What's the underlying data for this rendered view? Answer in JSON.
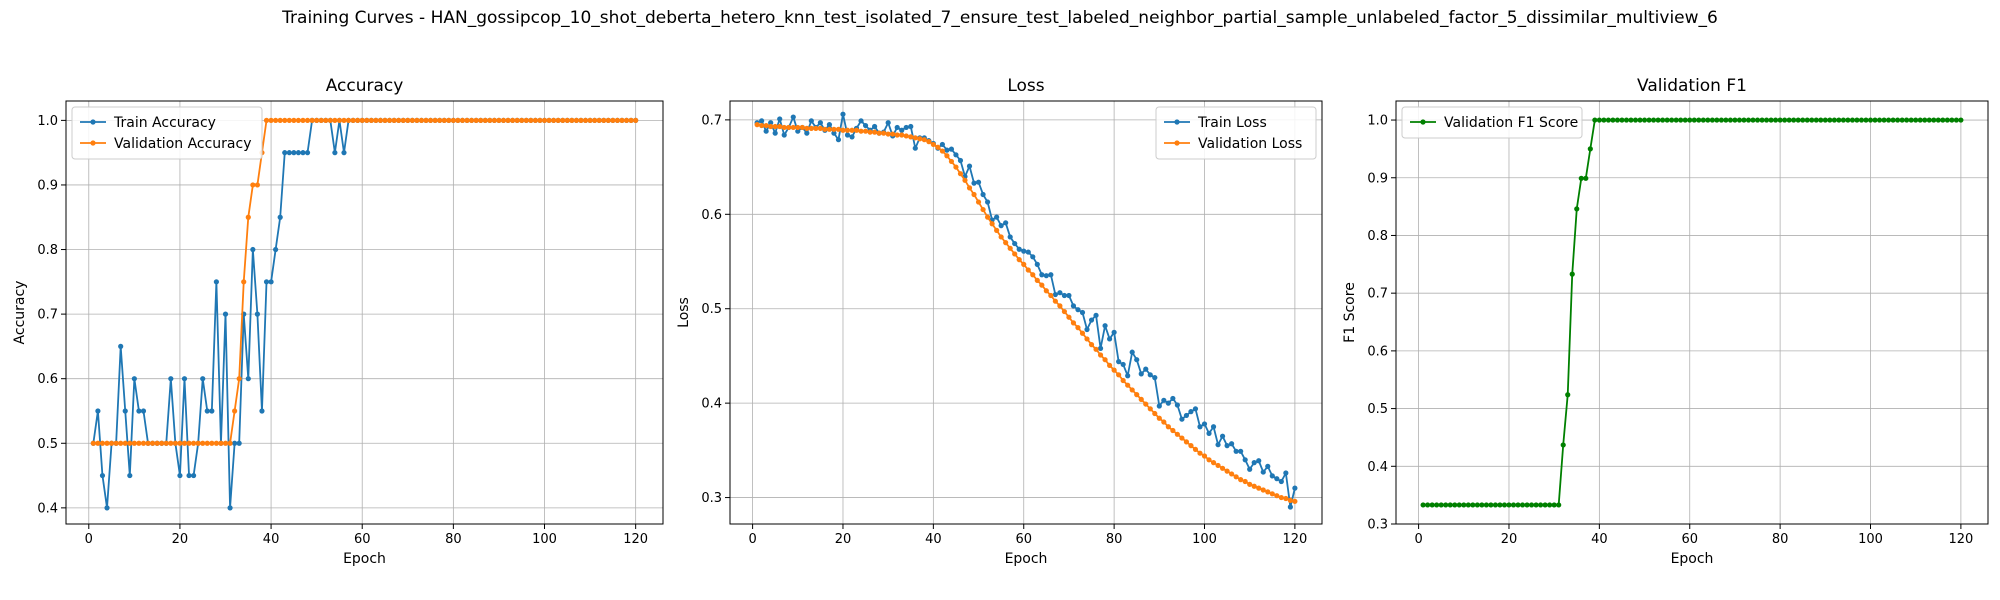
{
  "figure": {
    "suptitle": "Training Curves - HAN_gossipcop_10_shot_deberta_hetero_knn_test_isolated_7_ensure_test_labeled_neighbor_partial_sample_unlabeled_factor_5_dissimilar_multiview_6"
  },
  "chart_data": [
    {
      "type": "line",
      "title": "Accuracy",
      "xlabel": "Epoch",
      "ylabel": "Accuracy",
      "xlim": [
        -5,
        126
      ],
      "ylim": [
        0.375,
        1.03
      ],
      "xticks": [
        0,
        20,
        40,
        60,
        80,
        100,
        120
      ],
      "yticks": [
        0.4,
        0.5,
        0.6,
        0.7,
        0.8,
        0.9,
        1.0
      ],
      "ytick_labels": [
        "0.4",
        "0.5",
        "0.6",
        "0.7",
        "0.8",
        "0.9",
        "1.0"
      ],
      "grid": true,
      "legend_position": "upper-left",
      "x": [
        1,
        2,
        3,
        4,
        5,
        6,
        7,
        8,
        9,
        10,
        11,
        12,
        13,
        14,
        15,
        16,
        17,
        18,
        19,
        20,
        21,
        22,
        23,
        24,
        25,
        26,
        27,
        28,
        29,
        30,
        31,
        32,
        33,
        34,
        35,
        36,
        37,
        38,
        39,
        40,
        41,
        42,
        43,
        44,
        45,
        46,
        47,
        48,
        49,
        50,
        51,
        52,
        53,
        54,
        55,
        56,
        57,
        58,
        59,
        60,
        61,
        62,
        63,
        64,
        65,
        66,
        67,
        68,
        69,
        70,
        71,
        72,
        73,
        74,
        75,
        76,
        77,
        78,
        79,
        80,
        81,
        82,
        83,
        84,
        85,
        86,
        87,
        88,
        89,
        90,
        91,
        92,
        93,
        94,
        95,
        96,
        97,
        98,
        99,
        100,
        101,
        102,
        103,
        104,
        105,
        106,
        107,
        108,
        109,
        110,
        111,
        112,
        113,
        114,
        115,
        116,
        117,
        118,
        119,
        120
      ],
      "series": [
        {
          "name": "Train Accuracy",
          "color": "#1f77b4",
          "values": [
            0.5,
            0.55,
            0.45,
            0.4,
            0.5,
            0.5,
            0.65,
            0.55,
            0.45,
            0.6,
            0.55,
            0.55,
            0.5,
            0.5,
            0.5,
            0.5,
            0.5,
            0.6,
            0.5,
            0.45,
            0.6,
            0.45,
            0.45,
            0.5,
            0.6,
            0.55,
            0.55,
            0.75,
            0.5,
            0.7,
            0.4,
            0.5,
            0.5,
            0.7,
            0.6,
            0.8,
            0.7,
            0.55,
            0.75,
            0.75,
            0.8,
            0.85,
            0.95,
            0.95,
            0.95,
            0.95,
            0.95,
            0.95,
            1.0,
            1.0,
            1.0,
            1.0,
            1.0,
            0.95,
            1.0,
            0.95,
            1.0,
            1.0,
            1.0,
            1.0,
            1.0,
            1.0,
            1.0,
            1.0,
            1.0,
            1.0,
            1.0,
            1.0,
            1.0,
            1.0,
            1.0,
            1.0,
            1.0,
            1.0,
            1.0,
            1.0,
            1.0,
            1.0,
            1.0,
            1.0,
            1.0,
            1.0,
            1.0,
            1.0,
            1.0,
            1.0,
            1.0,
            1.0,
            1.0,
            1.0,
            1.0,
            1.0,
            1.0,
            1.0,
            1.0,
            1.0,
            1.0,
            1.0,
            1.0,
            1.0,
            1.0,
            1.0,
            1.0,
            1.0,
            1.0,
            1.0,
            1.0,
            1.0,
            1.0,
            1.0,
            1.0,
            1.0,
            1.0,
            1.0,
            1.0,
            1.0,
            1.0,
            1.0,
            1.0,
            1.0
          ]
        },
        {
          "name": "Validation Accuracy",
          "color": "#ff7f0e",
          "values": [
            0.5,
            0.5,
            0.5,
            0.5,
            0.5,
            0.5,
            0.5,
            0.5,
            0.5,
            0.5,
            0.5,
            0.5,
            0.5,
            0.5,
            0.5,
            0.5,
            0.5,
            0.5,
            0.5,
            0.5,
            0.5,
            0.5,
            0.5,
            0.5,
            0.5,
            0.5,
            0.5,
            0.5,
            0.5,
            0.5,
            0.5,
            0.55,
            0.6,
            0.75,
            0.85,
            0.9,
            0.9,
            0.95,
            1.0,
            1.0,
            1.0,
            1.0,
            1.0,
            1.0,
            1.0,
            1.0,
            1.0,
            1.0,
            1.0,
            1.0,
            1.0,
            1.0,
            1.0,
            1.0,
            1.0,
            1.0,
            1.0,
            1.0,
            1.0,
            1.0,
            1.0,
            1.0,
            1.0,
            1.0,
            1.0,
            1.0,
            1.0,
            1.0,
            1.0,
            1.0,
            1.0,
            1.0,
            1.0,
            1.0,
            1.0,
            1.0,
            1.0,
            1.0,
            1.0,
            1.0,
            1.0,
            1.0,
            1.0,
            1.0,
            1.0,
            1.0,
            1.0,
            1.0,
            1.0,
            1.0,
            1.0,
            1.0,
            1.0,
            1.0,
            1.0,
            1.0,
            1.0,
            1.0,
            1.0,
            1.0,
            1.0,
            1.0,
            1.0,
            1.0,
            1.0,
            1.0,
            1.0,
            1.0,
            1.0,
            1.0,
            1.0,
            1.0,
            1.0,
            1.0,
            1.0,
            1.0,
            1.0,
            1.0,
            1.0,
            1.0
          ]
        }
      ]
    },
    {
      "type": "line",
      "title": "Loss",
      "xlabel": "Epoch",
      "ylabel": "Loss",
      "xlim": [
        -5,
        126
      ],
      "ylim": [
        0.272,
        0.72
      ],
      "xticks": [
        0,
        20,
        40,
        60,
        80,
        100,
        120
      ],
      "yticks": [
        0.3,
        0.4,
        0.5,
        0.6,
        0.7
      ],
      "ytick_labels": [
        "0.3",
        "0.4",
        "0.5",
        "0.6",
        "0.7"
      ],
      "grid": true,
      "legend_position": "upper-right",
      "x": [
        1,
        2,
        3,
        4,
        5,
        6,
        7,
        8,
        9,
        10,
        11,
        12,
        13,
        14,
        15,
        16,
        17,
        18,
        19,
        20,
        21,
        22,
        23,
        24,
        25,
        26,
        27,
        28,
        29,
        30,
        31,
        32,
        33,
        34,
        35,
        36,
        37,
        38,
        39,
        40,
        41,
        42,
        43,
        44,
        45,
        46,
        47,
        48,
        49,
        50,
        51,
        52,
        53,
        54,
        55,
        56,
        57,
        58,
        59,
        60,
        61,
        62,
        63,
        64,
        65,
        66,
        67,
        68,
        69,
        70,
        71,
        72,
        73,
        74,
        75,
        76,
        77,
        78,
        79,
        80,
        81,
        82,
        83,
        84,
        85,
        86,
        87,
        88,
        89,
        90,
        91,
        92,
        93,
        94,
        95,
        96,
        97,
        98,
        99,
        100,
        101,
        102,
        103,
        104,
        105,
        106,
        107,
        108,
        109,
        110,
        111,
        112,
        113,
        114,
        115,
        116,
        117,
        118,
        119,
        120
      ],
      "series": [
        {
          "name": "Train Loss",
          "color": "#1f77b4",
          "values": [
            0.697,
            0.699,
            0.688,
            0.697,
            0.686,
            0.701,
            0.684,
            0.692,
            0.703,
            0.688,
            0.692,
            0.686,
            0.699,
            0.692,
            0.697,
            0.689,
            0.695,
            0.686,
            0.679,
            0.706,
            0.684,
            0.682,
            0.691,
            0.699,
            0.694,
            0.689,
            0.693,
            0.686,
            0.687,
            0.697,
            0.683,
            0.692,
            0.689,
            0.692,
            0.693,
            0.67,
            0.681,
            0.681,
            0.678,
            0.675,
            0.67,
            0.674,
            0.668,
            0.669,
            0.663,
            0.657,
            0.64,
            0.651,
            0.633,
            0.634,
            0.621,
            0.613,
            0.594,
            0.597,
            0.588,
            0.591,
            0.576,
            0.569,
            0.563,
            0.561,
            0.56,
            0.555,
            0.547,
            0.536,
            0.535,
            0.536,
            0.515,
            0.517,
            0.514,
            0.514,
            0.503,
            0.499,
            0.496,
            0.478,
            0.488,
            0.493,
            0.458,
            0.482,
            0.468,
            0.475,
            0.444,
            0.441,
            0.429,
            0.454,
            0.446,
            0.431,
            0.436,
            0.43,
            0.427,
            0.397,
            0.403,
            0.4,
            0.405,
            0.398,
            0.383,
            0.387,
            0.391,
            0.394,
            0.375,
            0.378,
            0.368,
            0.375,
            0.356,
            0.365,
            0.355,
            0.357,
            0.349,
            0.349,
            0.34,
            0.33,
            0.337,
            0.339,
            0.327,
            0.333,
            0.323,
            0.32,
            0.317,
            0.326,
            0.29,
            0.31
          ]
        },
        {
          "name": "Validation Loss",
          "color": "#ff7f0e",
          "values": [
            0.695,
            0.694,
            0.694,
            0.693,
            0.693,
            0.693,
            0.692,
            0.692,
            0.692,
            0.692,
            0.692,
            0.691,
            0.691,
            0.691,
            0.691,
            0.69,
            0.69,
            0.69,
            0.69,
            0.689,
            0.689,
            0.689,
            0.689,
            0.688,
            0.688,
            0.687,
            0.687,
            0.686,
            0.686,
            0.685,
            0.685,
            0.684,
            0.684,
            0.683,
            0.682,
            0.681,
            0.68,
            0.679,
            0.677,
            0.674,
            0.671,
            0.667,
            0.662,
            0.656,
            0.65,
            0.643,
            0.636,
            0.628,
            0.621,
            0.613,
            0.605,
            0.597,
            0.59,
            0.583,
            0.576,
            0.57,
            0.564,
            0.558,
            0.552,
            0.547,
            0.541,
            0.536,
            0.53,
            0.525,
            0.519,
            0.514,
            0.508,
            0.503,
            0.497,
            0.491,
            0.485,
            0.48,
            0.474,
            0.468,
            0.462,
            0.457,
            0.451,
            0.446,
            0.44,
            0.435,
            0.43,
            0.424,
            0.419,
            0.414,
            0.409,
            0.404,
            0.399,
            0.394,
            0.389,
            0.384,
            0.38,
            0.375,
            0.371,
            0.367,
            0.363,
            0.359,
            0.355,
            0.351,
            0.347,
            0.344,
            0.34,
            0.337,
            0.334,
            0.331,
            0.328,
            0.325,
            0.322,
            0.319,
            0.317,
            0.314,
            0.312,
            0.31,
            0.308,
            0.306,
            0.304,
            0.302,
            0.3,
            0.299,
            0.297,
            0.296
          ]
        }
      ]
    },
    {
      "type": "line",
      "title": "Validation F1",
      "xlabel": "Epoch",
      "ylabel": "F1 Score",
      "xlim": [
        -5,
        126
      ],
      "ylim": [
        0.3,
        1.033
      ],
      "xticks": [
        0,
        20,
        40,
        60,
        80,
        100,
        120
      ],
      "yticks": [
        0.3,
        0.4,
        0.5,
        0.6,
        0.7,
        0.8,
        0.9,
        1.0
      ],
      "ytick_labels": [
        "0.3",
        "0.4",
        "0.5",
        "0.6",
        "0.7",
        "0.8",
        "0.9",
        "1.0"
      ],
      "grid": true,
      "legend_position": "upper-left",
      "x": [
        1,
        2,
        3,
        4,
        5,
        6,
        7,
        8,
        9,
        10,
        11,
        12,
        13,
        14,
        15,
        16,
        17,
        18,
        19,
        20,
        21,
        22,
        23,
        24,
        25,
        26,
        27,
        28,
        29,
        30,
        31,
        32,
        33,
        34,
        35,
        36,
        37,
        38,
        39,
        40,
        41,
        42,
        43,
        44,
        45,
        46,
        47,
        48,
        49,
        50,
        51,
        52,
        53,
        54,
        55,
        56,
        57,
        58,
        59,
        60,
        61,
        62,
        63,
        64,
        65,
        66,
        67,
        68,
        69,
        70,
        71,
        72,
        73,
        74,
        75,
        76,
        77,
        78,
        79,
        80,
        81,
        82,
        83,
        84,
        85,
        86,
        87,
        88,
        89,
        90,
        91,
        92,
        93,
        94,
        95,
        96,
        97,
        98,
        99,
        100,
        101,
        102,
        103,
        104,
        105,
        106,
        107,
        108,
        109,
        110,
        111,
        112,
        113,
        114,
        115,
        116,
        117,
        118,
        119,
        120
      ],
      "series": [
        {
          "name": "Validation F1 Score",
          "color": "#008000",
          "values": [
            0.333,
            0.333,
            0.333,
            0.333,
            0.333,
            0.333,
            0.333,
            0.333,
            0.333,
            0.333,
            0.333,
            0.333,
            0.333,
            0.333,
            0.333,
            0.333,
            0.333,
            0.333,
            0.333,
            0.333,
            0.333,
            0.333,
            0.333,
            0.333,
            0.333,
            0.333,
            0.333,
            0.333,
            0.333,
            0.333,
            0.333,
            0.437,
            0.524,
            0.733,
            0.846,
            0.899,
            0.899,
            0.95,
            1.0,
            1.0,
            1.0,
            1.0,
            1.0,
            1.0,
            1.0,
            1.0,
            1.0,
            1.0,
            1.0,
            1.0,
            1.0,
            1.0,
            1.0,
            1.0,
            1.0,
            1.0,
            1.0,
            1.0,
            1.0,
            1.0,
            1.0,
            1.0,
            1.0,
            1.0,
            1.0,
            1.0,
            1.0,
            1.0,
            1.0,
            1.0,
            1.0,
            1.0,
            1.0,
            1.0,
            1.0,
            1.0,
            1.0,
            1.0,
            1.0,
            1.0,
            1.0,
            1.0,
            1.0,
            1.0,
            1.0,
            1.0,
            1.0,
            1.0,
            1.0,
            1.0,
            1.0,
            1.0,
            1.0,
            1.0,
            1.0,
            1.0,
            1.0,
            1.0,
            1.0,
            1.0,
            1.0,
            1.0,
            1.0,
            1.0,
            1.0,
            1.0,
            1.0,
            1.0,
            1.0,
            1.0,
            1.0,
            1.0,
            1.0,
            1.0,
            1.0,
            1.0,
            1.0,
            1.0,
            1.0,
            1.0
          ]
        }
      ]
    }
  ]
}
